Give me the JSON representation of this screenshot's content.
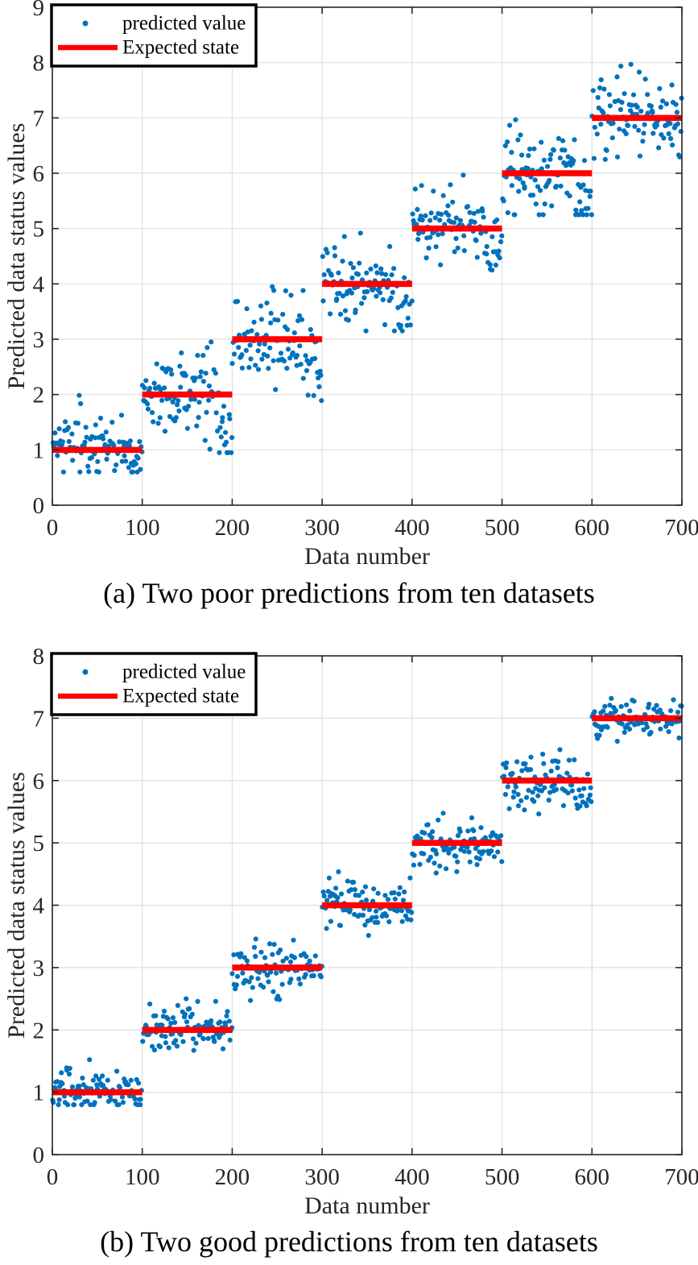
{
  "figure": {
    "background": "#ffffff",
    "caption_a": "(a) Two poor predictions from ten datasets",
    "caption_b": "(b) Two good predictions from ten datasets"
  },
  "chart_data": [
    {
      "id": "a",
      "type": "scatter",
      "caption": "(a) Two poor predictions from ten datasets",
      "xlabel": "Data number",
      "ylabel": "Predicted data status values",
      "xlim": [
        0,
        700
      ],
      "ylim": [
        0,
        9
      ],
      "xticks": [
        0,
        100,
        200,
        300,
        400,
        500,
        600,
        700
      ],
      "yticks": [
        0,
        1,
        2,
        3,
        4,
        5,
        6,
        7,
        8,
        9
      ],
      "grid": true,
      "axis_color": "#262626",
      "grid_color": "#dfdfdf",
      "background": "#ffffff",
      "legend": {
        "position": "top-left",
        "entries": [
          {
            "label": "predicted value",
            "marker": "dot",
            "color": "#0072BD"
          },
          {
            "label": "Expected state",
            "marker": "line",
            "color": "#FF0000"
          }
        ]
      },
      "series": [
        {
          "name": "predicted value",
          "plot": "scatter",
          "color": "#0072BD",
          "marker": "dot",
          "marker_radius_px": 3.1,
          "n_points": 700,
          "points_per_segment": 100,
          "seed": 12345,
          "outlier_fraction": 0.04,
          "outlier_range": [
            0.6,
            1.0
          ],
          "segments": [
            {
              "x_range": [
                0,
                100
              ],
              "mean": 1,
              "std": 0.26,
              "min": 0.6,
              "max": 2.2,
              "end_dip": -0.15
            },
            {
              "x_range": [
                100,
                200
              ],
              "mean": 2,
              "std": 0.38,
              "min": 0.95,
              "max": 2.95,
              "end_dip": -0.7
            },
            {
              "x_range": [
                200,
                300
              ],
              "mean": 3,
              "std": 0.36,
              "min": 1.85,
              "max": 3.95,
              "end_dip": -0.55
            },
            {
              "x_range": [
                300,
                400
              ],
              "mean": 4,
              "std": 0.3,
              "min": 3.15,
              "max": 5.3,
              "end_dip": -0.45
            },
            {
              "x_range": [
                400,
                500
              ],
              "mean": 5,
              "std": 0.28,
              "min": 4.25,
              "max": 6.05,
              "end_dip": -0.35
            },
            {
              "x_range": [
                500,
                600
              ],
              "mean": 6,
              "std": 0.34,
              "min": 5.25,
              "max": 7.5,
              "end_dip": -0.5
            },
            {
              "x_range": [
                600,
                700
              ],
              "mean": 7,
              "std": 0.32,
              "min": 6.25,
              "max": 8.15,
              "end_dip": -0.2
            }
          ]
        },
        {
          "name": "Expected state",
          "plot": "step-line",
          "color": "#FF0000",
          "line_width": 7.5,
          "steps": [
            {
              "x_range": [
                0,
                100
              ],
              "value": 1
            },
            {
              "x_range": [
                100,
                200
              ],
              "value": 2
            },
            {
              "x_range": [
                200,
                300
              ],
              "value": 3
            },
            {
              "x_range": [
                300,
                400
              ],
              "value": 4
            },
            {
              "x_range": [
                400,
                500
              ],
              "value": 5
            },
            {
              "x_range": [
                500,
                600
              ],
              "value": 6
            },
            {
              "x_range": [
                600,
                700
              ],
              "value": 7
            }
          ]
        }
      ]
    },
    {
      "id": "b",
      "type": "scatter",
      "caption": "(b) Two good predictions from ten datasets",
      "xlabel": "Data number",
      "ylabel": "Predicted data status values",
      "xlim": [
        0,
        700
      ],
      "ylim": [
        0,
        8
      ],
      "xticks": [
        0,
        100,
        200,
        300,
        400,
        500,
        600,
        700
      ],
      "yticks": [
        0,
        1,
        2,
        3,
        4,
        5,
        6,
        7,
        8
      ],
      "grid": true,
      "axis_color": "#262626",
      "grid_color": "#dfdfdf",
      "background": "#ffffff",
      "legend": {
        "position": "top-left",
        "entries": [
          {
            "label": "predicted value",
            "marker": "dot",
            "color": "#0072BD"
          },
          {
            "label": "Expected state",
            "marker": "line",
            "color": "#FF0000"
          }
        ]
      },
      "series": [
        {
          "name": "predicted value",
          "plot": "scatter",
          "color": "#0072BD",
          "marker": "dot",
          "marker_radius_px": 3.1,
          "n_points": 700,
          "points_per_segment": 100,
          "seed": 67890,
          "outlier_fraction": 0.05,
          "outlier_range": [
            0.3,
            0.55
          ],
          "segments": [
            {
              "x_range": [
                0,
                100
              ],
              "mean": 1,
              "std": 0.15,
              "min": 0.8,
              "max": 1.55,
              "end_dip": 0
            },
            {
              "x_range": [
                100,
                200
              ],
              "mean": 2,
              "std": 0.17,
              "min": 1.45,
              "max": 2.5,
              "end_dip": 0
            },
            {
              "x_range": [
                200,
                300
              ],
              "mean": 3,
              "std": 0.18,
              "min": 2.4,
              "max": 3.6,
              "end_dip": 0
            },
            {
              "x_range": [
                300,
                400
              ],
              "mean": 4,
              "std": 0.18,
              "min": 3.45,
              "max": 4.6,
              "end_dip": 0
            },
            {
              "x_range": [
                400,
                500
              ],
              "mean": 5,
              "std": 0.17,
              "min": 4.5,
              "max": 5.55,
              "end_dip": 0
            },
            {
              "x_range": [
                500,
                600
              ],
              "mean": 6,
              "std": 0.18,
              "min": 5.45,
              "max": 6.55,
              "end_dip": -0.25
            },
            {
              "x_range": [
                600,
                700
              ],
              "mean": 7,
              "std": 0.15,
              "min": 6.5,
              "max": 7.8,
              "end_dip": 0
            }
          ]
        },
        {
          "name": "Expected state",
          "plot": "step-line",
          "color": "#FF0000",
          "line_width": 7.5,
          "steps": [
            {
              "x_range": [
                0,
                100
              ],
              "value": 1
            },
            {
              "x_range": [
                100,
                200
              ],
              "value": 2
            },
            {
              "x_range": [
                200,
                300
              ],
              "value": 3
            },
            {
              "x_range": [
                300,
                400
              ],
              "value": 4
            },
            {
              "x_range": [
                400,
                500
              ],
              "value": 5
            },
            {
              "x_range": [
                500,
                600
              ],
              "value": 6
            },
            {
              "x_range": [
                600,
                700
              ],
              "value": 7
            }
          ]
        }
      ]
    }
  ]
}
